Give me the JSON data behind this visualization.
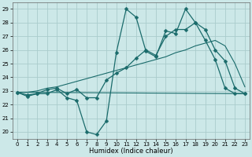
{
  "xlabel": "Humidex (Indice chaleur)",
  "bg_color": "#cce8e8",
  "grid_color": "#aacccc",
  "line_color": "#1a6b6b",
  "xlim": [
    -0.5,
    23.5
  ],
  "ylim": [
    19.5,
    29.5
  ],
  "xticks": [
    0,
    1,
    2,
    3,
    4,
    5,
    6,
    7,
    8,
    9,
    10,
    11,
    12,
    13,
    14,
    15,
    16,
    17,
    18,
    19,
    20,
    21,
    22,
    23
  ],
  "yticks": [
    20,
    21,
    22,
    23,
    24,
    25,
    26,
    27,
    28,
    29
  ],
  "series": [
    {
      "x": [
        0,
        1,
        2,
        3,
        4,
        5,
        6,
        7,
        8,
        9,
        10,
        11,
        12,
        13,
        14,
        15,
        16,
        17,
        18,
        19,
        20,
        21,
        22,
        23
      ],
      "y": [
        22.9,
        22.6,
        22.8,
        22.8,
        23.1,
        22.5,
        22.3,
        20.0,
        19.8,
        20.8,
        25.8,
        29.0,
        28.4,
        25.9,
        25.5,
        27.4,
        27.2,
        29.0,
        28.0,
        26.7,
        25.3,
        23.2,
        22.8,
        22.8
      ],
      "marker": "D",
      "markersize": 2.5,
      "lw": 0.9
    },
    {
      "x": [
        0,
        1,
        2,
        3,
        4,
        5,
        6,
        7,
        8,
        9,
        10,
        11,
        12,
        13,
        14,
        15,
        16,
        17,
        18,
        19,
        20,
        21,
        22,
        23
      ],
      "y": [
        22.9,
        22.7,
        22.8,
        23.1,
        23.2,
        22.8,
        23.1,
        22.5,
        22.5,
        23.8,
        24.3,
        24.7,
        25.4,
        26.0,
        25.6,
        27.0,
        27.5,
        27.5,
        28.0,
        27.5,
        26.0,
        25.2,
        23.2,
        22.8
      ],
      "marker": "D",
      "markersize": 2.5,
      "lw": 0.9
    },
    {
      "x": [
        0,
        23
      ],
      "y": [
        22.9,
        22.8
      ],
      "marker": null,
      "markersize": 0,
      "lw": 0.8
    },
    {
      "x": [
        0,
        1,
        2,
        3,
        4,
        5,
        6,
        7,
        8,
        9,
        10,
        11,
        12,
        13,
        14,
        15,
        16,
        17,
        18,
        19,
        20,
        21,
        22,
        23
      ],
      "y": [
        22.9,
        22.9,
        23.0,
        23.2,
        23.3,
        23.5,
        23.7,
        23.9,
        24.1,
        24.3,
        24.5,
        24.7,
        24.9,
        25.1,
        25.3,
        25.5,
        25.8,
        26.0,
        26.3,
        26.5,
        26.7,
        26.3,
        25.0,
        23.3
      ],
      "marker": null,
      "markersize": 0,
      "lw": 0.8
    }
  ]
}
